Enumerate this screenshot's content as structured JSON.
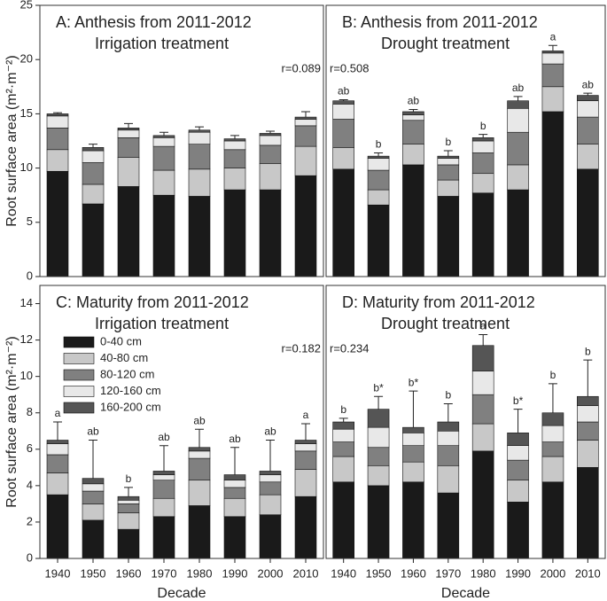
{
  "chart_data": [
    {
      "type": "stacked-bar",
      "title": "A: Anthesis from 2011-2012",
      "subtitle": "Irrigation treatment",
      "ylabel": "Root surface area (m²·m⁻²)",
      "annotation": "r=0.089",
      "categories": [
        null,
        null,
        null,
        null,
        null,
        null,
        null,
        null
      ],
      "ylim": [
        0,
        25
      ],
      "yticks": [
        0,
        5,
        10,
        15,
        20,
        25
      ],
      "series": [
        {
          "color": "#1a1a1a",
          "values": [
            9.7,
            6.7,
            8.3,
            7.5,
            7.4,
            8.0,
            8.0,
            9.3
          ]
        },
        {
          "color": "#c8c8c8",
          "values": [
            2.0,
            1.8,
            2.7,
            2.3,
            2.5,
            2.0,
            2.4,
            2.7
          ]
        },
        {
          "color": "#808080",
          "values": [
            2.0,
            2.0,
            1.8,
            2.2,
            2.3,
            1.7,
            1.7,
            1.9
          ]
        },
        {
          "color": "#e8e8e8",
          "values": [
            1.1,
            1.1,
            0.7,
            0.8,
            1.1,
            0.8,
            0.9,
            0.6
          ]
        },
        {
          "color": "#555555",
          "values": [
            0.2,
            0.3,
            0.2,
            0.2,
            0.2,
            0.2,
            0.2,
            0.2
          ]
        }
      ],
      "errors": [
        0.1,
        0.3,
        0.4,
        0.3,
        0.3,
        0.3,
        0.2,
        0.5
      ]
    },
    {
      "type": "stacked-bar",
      "title": "B: Anthesis from 2011-2012",
      "subtitle": "Drought treatment",
      "annotation": "r=0.508",
      "categories": [
        null,
        null,
        null,
        null,
        null,
        null,
        null,
        null
      ],
      "ylim": [
        0,
        25
      ],
      "series": [
        {
          "color": "#1a1a1a",
          "values": [
            9.9,
            6.6,
            10.3,
            7.4,
            7.7,
            8.0,
            15.2,
            9.9
          ]
        },
        {
          "color": "#c8c8c8",
          "values": [
            2.0,
            1.4,
            1.9,
            1.5,
            1.8,
            2.3,
            2.3,
            2.3
          ]
        },
        {
          "color": "#808080",
          "values": [
            2.6,
            1.8,
            2.2,
            1.4,
            1.9,
            3.0,
            2.1,
            2.5
          ]
        },
        {
          "color": "#e8e8e8",
          "values": [
            1.4,
            1.1,
            0.5,
            0.6,
            1.1,
            2.2,
            1.0,
            1.5
          ]
        },
        {
          "color": "#555555",
          "values": [
            0.3,
            0.2,
            0.3,
            0.2,
            0.3,
            0.7,
            0.2,
            0.5
          ]
        }
      ],
      "errors": [
        0.1,
        0.3,
        0.2,
        0.5,
        0.3,
        0.4,
        0.5,
        0.2
      ],
      "letters": [
        "ab",
        "b",
        "ab",
        "b",
        "b",
        "ab",
        "a",
        "ab"
      ]
    },
    {
      "type": "stacked-bar",
      "title": "C: Maturity from 2011-2012",
      "subtitle": "Irrigation treatment",
      "ylabel": "Root surface area (m²·m⁻²)",
      "xlabel": "Decade",
      "annotation": "r=0.182",
      "categories": [
        "1940",
        "1950",
        "1960",
        "1970",
        "1980",
        "1990",
        "2000",
        "2010"
      ],
      "ylim": [
        0,
        15
      ],
      "yticks": [
        0,
        2,
        4,
        6,
        8,
        10,
        12,
        14
      ],
      "series": [
        {
          "name": "0-40 cm",
          "color": "#1a1a1a",
          "values": [
            3.5,
            2.1,
            1.6,
            2.3,
            2.9,
            2.3,
            2.4,
            3.4
          ]
        },
        {
          "name": "40-80 cm",
          "color": "#c8c8c8",
          "values": [
            1.2,
            0.9,
            0.9,
            1.0,
            1.4,
            1.0,
            1.1,
            1.5
          ]
        },
        {
          "name": "80-120 cm",
          "color": "#808080",
          "values": [
            1.0,
            0.7,
            0.5,
            1.0,
            1.2,
            0.6,
            0.7,
            1.0
          ]
        },
        {
          "name": "120-160 cm",
          "color": "#e8e8e8",
          "values": [
            0.6,
            0.4,
            0.2,
            0.3,
            0.4,
            0.4,
            0.4,
            0.4
          ]
        },
        {
          "name": "160-200 cm",
          "color": "#555555",
          "values": [
            0.2,
            0.3,
            0.2,
            0.2,
            0.2,
            0.3,
            0.2,
            0.2
          ]
        }
      ],
      "errors": [
        1.0,
        2.1,
        0.5,
        1.4,
        1.0,
        1.5,
        1.7,
        0.9
      ],
      "letters": [
        "a",
        "ab",
        "b",
        "ab",
        "ab",
        "ab",
        "ab",
        "a"
      ]
    },
    {
      "type": "stacked-bar",
      "title": "D: Maturity from 2011-2012",
      "subtitle": "Drought treatment",
      "xlabel": "Decade",
      "annotation": "r=0.234",
      "categories": [
        "1940",
        "1950",
        "1960",
        "1970",
        "1980",
        "1990",
        "2000",
        "2010"
      ],
      "ylim": [
        0,
        15
      ],
      "series": [
        {
          "color": "#1a1a1a",
          "values": [
            4.2,
            4.0,
            4.2,
            3.6,
            5.9,
            3.1,
            4.2,
            5.0
          ]
        },
        {
          "color": "#c8c8c8",
          "values": [
            1.4,
            1.1,
            1.1,
            1.5,
            1.5,
            1.2,
            1.4,
            1.5
          ]
        },
        {
          "color": "#808080",
          "values": [
            0.8,
            1.0,
            0.9,
            1.1,
            1.6,
            1.1,
            0.8,
            1.0
          ]
        },
        {
          "color": "#e8e8e8",
          "values": [
            0.7,
            1.1,
            0.7,
            0.8,
            1.3,
            0.8,
            0.9,
            0.9
          ]
        },
        {
          "color": "#555555",
          "values": [
            0.4,
            1.0,
            0.3,
            0.5,
            1.4,
            0.7,
            0.7,
            0.5
          ]
        }
      ],
      "errors": [
        0.2,
        0.7,
        2.0,
        1.0,
        0.6,
        1.3,
        1.6,
        2.0
      ],
      "letters": [
        "b",
        "b*",
        "b*",
        "b",
        "a",
        "b*",
        "b",
        "b"
      ]
    }
  ]
}
